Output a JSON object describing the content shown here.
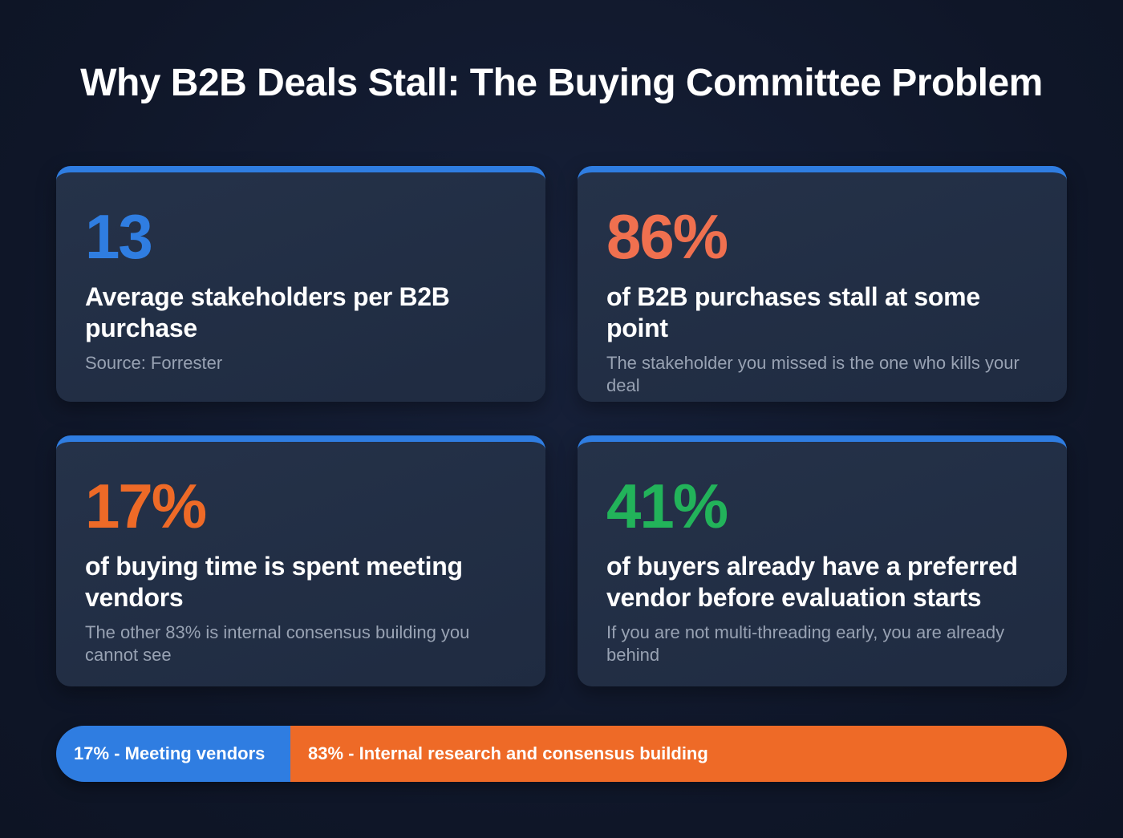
{
  "title": "Why B2B Deals Stall: The Buying Committee Problem",
  "colors": {
    "background": "#0f1628",
    "card": "#222e44",
    "accent_blue": "#2f7de1",
    "coral": "#f0704f",
    "orange": "#ee6a27",
    "green": "#22b35a"
  },
  "cards": [
    {
      "value": "13",
      "value_color": "#2f7de1",
      "heading": "Average stakeholders per B2B purchase",
      "sub": "Source: Forrester"
    },
    {
      "value": "86%",
      "value_color": "#f0704f",
      "heading": "of B2B purchases stall at some point",
      "sub": "The stakeholder you missed is the one who kills your deal"
    },
    {
      "value": "17%",
      "value_color": "#ee6a27",
      "heading": "of buying time is spent meeting vendors",
      "sub": "The other 83% is internal consensus building you cannot see"
    },
    {
      "value": "41%",
      "value_color": "#22b35a",
      "heading": "of buyers already have a preferred vendor before evaluation starts",
      "sub": "If you are not multi-threading early, you are already behind"
    }
  ],
  "split_bar": {
    "segments": [
      {
        "label": "17% - Meeting vendors",
        "percent": 17,
        "color": "#2f7de1"
      },
      {
        "label": "83% - Internal research and consensus building",
        "percent": 83,
        "color": "#ee6a27"
      }
    ]
  }
}
